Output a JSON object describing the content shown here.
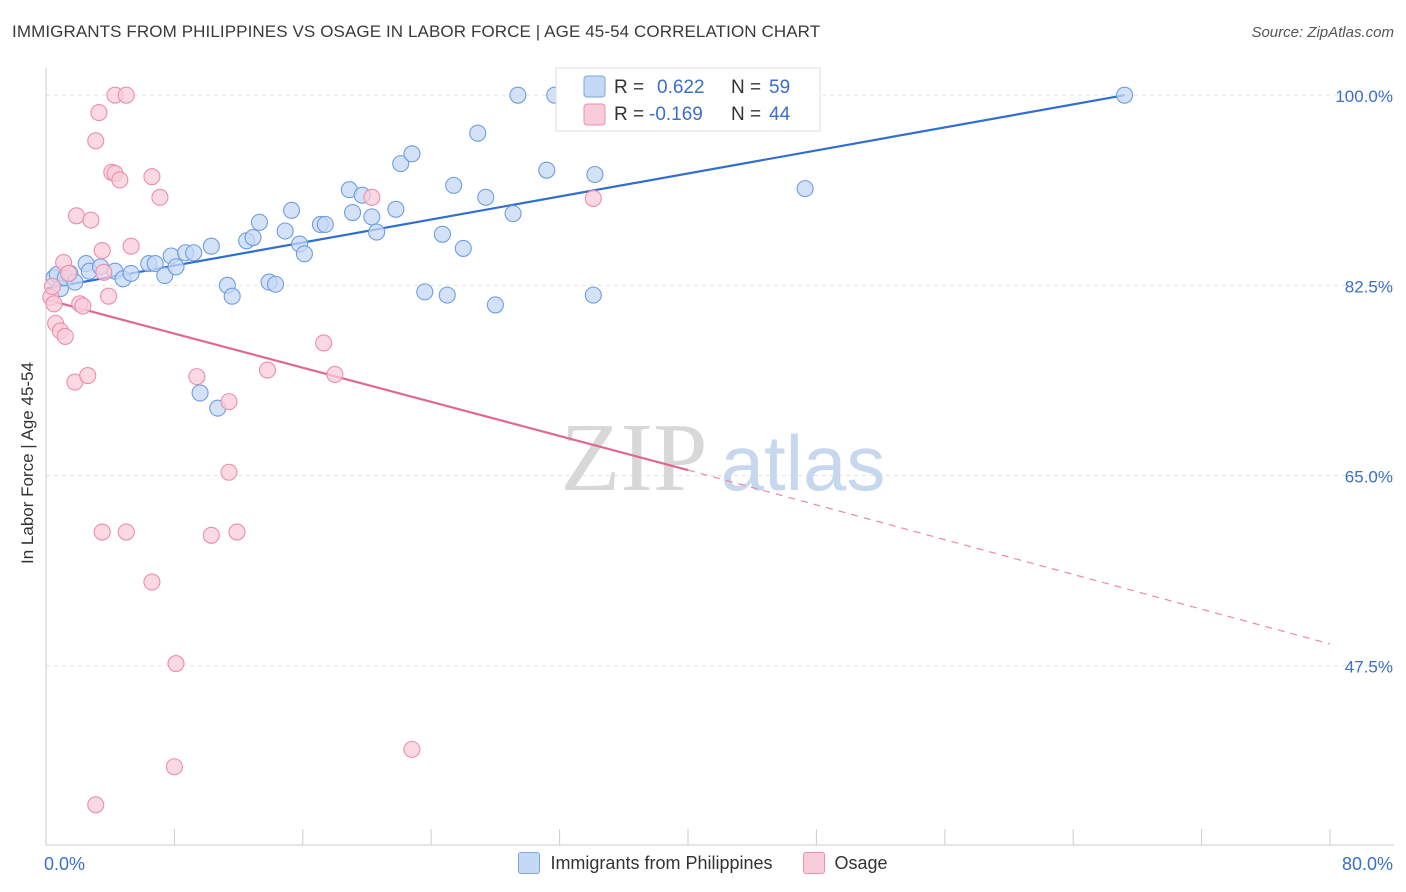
{
  "header": {
    "title": "IMMIGRANTS FROM PHILIPPINES VS OSAGE IN LABOR FORCE | AGE 45-54 CORRELATION CHART",
    "source": "Source: ZipAtlas.com"
  },
  "watermark": {
    "zip": "ZIP",
    "atlas": "atlas"
  },
  "chart_data": {
    "type": "scatter",
    "title": "IMMIGRANTS FROM PHILIPPINES VS OSAGE IN LABOR FORCE | AGE 45-54 CORRELATION CHART",
    "xlabel": "",
    "ylabel": "In Labor Force | Age 45-54",
    "xlim": [
      0,
      80
    ],
    "ylim": [
      31,
      102.5
    ],
    "x_tick_labels": [
      "0.0%",
      "80.0%"
    ],
    "y_ticks": [
      47.5,
      65.0,
      82.5,
      100.0
    ],
    "y_tick_labels": [
      "47.5%",
      "65.0%",
      "82.5%",
      "100.0%"
    ],
    "grid": true,
    "legend_position": "top-center",
    "stats": [
      {
        "r_label": "R =",
        "r": "0.622",
        "n_label": "N =",
        "n": "59"
      },
      {
        "r_label": "R =",
        "r": "-0.169",
        "n_label": "N =",
        "n": "44"
      }
    ],
    "series": [
      {
        "name": "Immigrants from Philippines",
        "color": "#6f9de0",
        "fill": "#c5d8f5",
        "trend": {
          "x": [
            0,
            67.2
          ],
          "y": [
            82.2,
            100.0
          ],
          "dashed_to": null
        },
        "points": [
          [
            0.5,
            83.2
          ],
          [
            0.7,
            83.5
          ],
          [
            0.9,
            82.2
          ],
          [
            1.2,
            83.2
          ],
          [
            1.5,
            83.6
          ],
          [
            1.8,
            82.8
          ],
          [
            2.5,
            84.5
          ],
          [
            2.7,
            83.8
          ],
          [
            3.4,
            84.2
          ],
          [
            4.3,
            83.8
          ],
          [
            4.8,
            83.1
          ],
          [
            5.3,
            83.6
          ],
          [
            6.4,
            84.5
          ],
          [
            6.8,
            84.5
          ],
          [
            7.4,
            83.4
          ],
          [
            7.8,
            85.2
          ],
          [
            8.1,
            84.2
          ],
          [
            8.7,
            85.5
          ],
          [
            9.2,
            85.5
          ],
          [
            10.3,
            86.1
          ],
          [
            11.3,
            82.5
          ],
          [
            11.6,
            81.5
          ],
          [
            12.5,
            86.6
          ],
          [
            12.9,
            86.9
          ],
          [
            13.3,
            88.3
          ],
          [
            13.9,
            82.8
          ],
          [
            14.3,
            82.6
          ],
          [
            14.9,
            87.5
          ],
          [
            15.3,
            89.4
          ],
          [
            15.8,
            86.3
          ],
          [
            16.1,
            85.4
          ],
          [
            17.1,
            88.1
          ],
          [
            17.4,
            88.1
          ],
          [
            18.9,
            91.3
          ],
          [
            19.1,
            89.2
          ],
          [
            19.7,
            90.8
          ],
          [
            20.3,
            88.8
          ],
          [
            20.6,
            87.4
          ],
          [
            21.8,
            89.5
          ],
          [
            22.1,
            93.7
          ],
          [
            22.8,
            94.6
          ],
          [
            23.6,
            81.9
          ],
          [
            24.7,
            87.2
          ],
          [
            25.0,
            81.6
          ],
          [
            25.4,
            91.7
          ],
          [
            26.0,
            85.9
          ],
          [
            26.9,
            96.5
          ],
          [
            27.4,
            90.6
          ],
          [
            28.0,
            80.7
          ],
          [
            29.1,
            89.1
          ],
          [
            29.4,
            100.0
          ],
          [
            31.2,
            93.1
          ],
          [
            31.7,
            100.0
          ],
          [
            34.1,
            81.6
          ],
          [
            34.2,
            92.7
          ],
          [
            47.3,
            91.4
          ],
          [
            67.2,
            100.0
          ],
          [
            9.6,
            72.6
          ],
          [
            10.7,
            71.2
          ]
        ]
      },
      {
        "name": "Osage",
        "color": "#ec8eab",
        "fill": "#f9ccd9",
        "trend": {
          "x": [
            0,
            40
          ],
          "y": [
            81.2,
            65.5
          ],
          "dashed_to": [
            80,
            49.5
          ]
        },
        "points": [
          [
            0.3,
            81.4
          ],
          [
            0.4,
            82.4
          ],
          [
            0.5,
            80.8
          ],
          [
            0.6,
            79.0
          ],
          [
            0.9,
            78.3
          ],
          [
            1.1,
            84.6
          ],
          [
            1.2,
            77.8
          ],
          [
            1.4,
            83.6
          ],
          [
            1.8,
            73.6
          ],
          [
            2.1,
            80.8
          ],
          [
            1.9,
            88.9
          ],
          [
            2.3,
            80.6
          ],
          [
            2.6,
            74.2
          ],
          [
            2.8,
            88.5
          ],
          [
            3.1,
            95.8
          ],
          [
            3.5,
            85.7
          ],
          [
            3.3,
            98.4
          ],
          [
            3.6,
            83.7
          ],
          [
            3.9,
            81.5
          ],
          [
            4.1,
            92.9
          ],
          [
            4.3,
            92.8
          ],
          [
            4.3,
            100.0
          ],
          [
            4.6,
            92.2
          ],
          [
            5.0,
            100.0
          ],
          [
            5.3,
            86.1
          ],
          [
            6.6,
            92.5
          ],
          [
            7.1,
            90.6
          ],
          [
            9.4,
            74.1
          ],
          [
            10.3,
            59.5
          ],
          [
            11.4,
            71.8
          ],
          [
            11.9,
            59.8
          ],
          [
            13.8,
            74.7
          ],
          [
            17.3,
            77.2
          ],
          [
            18.0,
            74.3
          ],
          [
            20.3,
            90.6
          ],
          [
            22.8,
            39.8
          ],
          [
            34.1,
            90.5
          ],
          [
            3.5,
            59.8
          ],
          [
            5.0,
            59.8
          ],
          [
            6.6,
            55.2
          ],
          [
            8.1,
            47.7
          ],
          [
            8.0,
            38.2
          ],
          [
            3.1,
            34.7
          ],
          [
            11.4,
            65.3
          ]
        ]
      }
    ]
  }
}
